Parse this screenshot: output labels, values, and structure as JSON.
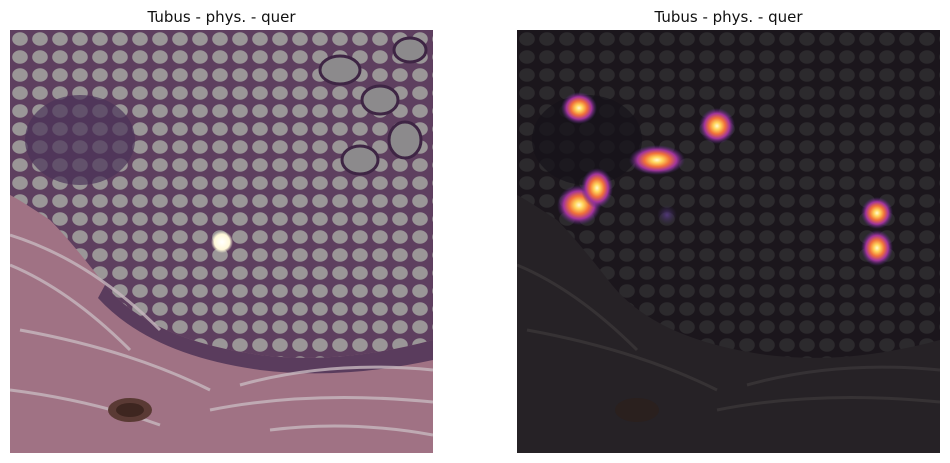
{
  "figure": {
    "left_panel": {
      "title": "Tubus - phys. - quer"
    },
    "right_panel": {
      "title": "Tubus - phys. - quer"
    }
  },
  "colors": {
    "tissue_pink": "#9c6e84",
    "gland_gray": "#8f8f8f",
    "dark_overlay": "#1e1b21",
    "heat_core": "#fff4b0",
    "heat_mid": "#ff8c2a",
    "heat_outer": "#7a2ea5"
  }
}
